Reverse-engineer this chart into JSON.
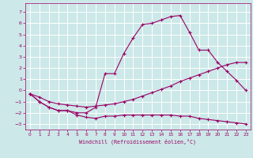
{
  "xlabel": "Windchill (Refroidissement éolien,°C)",
  "background_color": "#cce8e8",
  "grid_color": "#ffffff",
  "line_color": "#990066",
  "xlim": [
    -0.5,
    23.5
  ],
  "ylim": [
    -3.5,
    7.8
  ],
  "xticks": [
    0,
    1,
    2,
    3,
    4,
    5,
    6,
    7,
    8,
    9,
    10,
    11,
    12,
    13,
    14,
    15,
    16,
    17,
    18,
    19,
    20,
    21,
    22,
    23
  ],
  "yticks": [
    -3,
    -2,
    -1,
    0,
    1,
    2,
    3,
    4,
    5,
    6,
    7
  ],
  "line1_x": [
    0,
    1,
    2,
    3,
    4,
    5,
    6,
    7,
    8,
    9,
    10,
    11,
    12,
    13,
    14,
    15,
    16,
    17,
    18,
    19,
    20,
    21,
    22,
    23
  ],
  "line1_y": [
    -0.3,
    -1.0,
    -1.5,
    -1.8,
    -1.8,
    -2.2,
    -2.4,
    -2.5,
    -2.3,
    -2.3,
    -2.2,
    -2.2,
    -2.2,
    -2.2,
    -2.2,
    -2.2,
    -2.3,
    -2.3,
    -2.5,
    -2.6,
    -2.7,
    -2.8,
    -2.9,
    -3.0
  ],
  "line2_x": [
    0,
    1,
    2,
    3,
    4,
    5,
    6,
    7,
    8,
    9,
    10,
    11,
    12,
    13,
    14,
    15,
    16,
    17,
    18,
    19,
    20,
    21,
    22,
    23
  ],
  "line2_y": [
    -0.3,
    -0.6,
    -1.0,
    -1.2,
    -1.3,
    -1.4,
    -1.5,
    -1.4,
    -1.3,
    -1.2,
    -1.0,
    -0.8,
    -0.5,
    -0.2,
    0.1,
    0.4,
    0.8,
    1.1,
    1.4,
    1.7,
    2.0,
    2.3,
    2.5,
    2.5
  ],
  "line3_x": [
    0,
    1,
    2,
    3,
    4,
    5,
    6,
    7,
    8,
    9,
    10,
    11,
    12,
    13,
    14,
    15,
    16,
    17,
    18,
    19,
    20,
    21,
    22,
    23
  ],
  "line3_y": [
    -0.3,
    -1.0,
    -1.5,
    -1.8,
    -1.8,
    -2.0,
    -2.0,
    -1.5,
    1.5,
    1.5,
    3.3,
    4.7,
    5.9,
    6.0,
    6.3,
    6.6,
    6.7,
    5.2,
    3.6,
    3.6,
    2.5,
    1.7,
    0.9,
    0.0
  ]
}
